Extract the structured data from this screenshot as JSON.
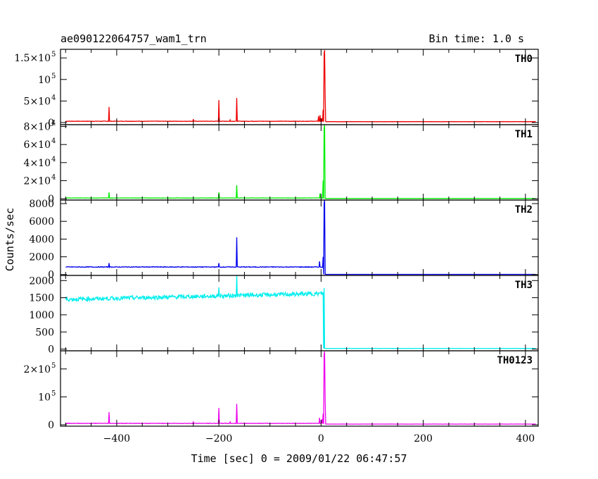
{
  "header": {
    "title": "ae090122064757_wam1_trn",
    "bin_time": "Bin time: 1.0 s"
  },
  "chart_data": {
    "type": "line",
    "xlabel": "Time [sec] 0 = 2009/01/22 06:47:57",
    "ylabel": "Counts/sec",
    "xlim": [
      -510,
      425
    ],
    "x_ticks": [
      -400,
      -200,
      0,
      200,
      400
    ],
    "grid": false,
    "panels": [
      {
        "name": "TH0",
        "color": "#ee0000",
        "ylim": [
          -5000,
          170000
        ],
        "y_ticks": [
          {
            "value": 0,
            "label": "0"
          },
          {
            "value": 50000,
            "label": "5×10",
            "exp": "4"
          },
          {
            "value": 100000,
            "label": "10",
            "exp": "5"
          },
          {
            "value": 150000,
            "label": "1.5×10",
            "exp": "5"
          }
        ],
        "baseline": 3000,
        "noise": 500,
        "after": 2000,
        "spikes": [
          [
            -415,
            36000
          ],
          [
            -250,
            8000
          ],
          [
            -200,
            52000
          ],
          [
            -178,
            6000
          ],
          [
            -165,
            57000
          ],
          [
            -5,
            15000
          ],
          [
            -2,
            17000
          ],
          [
            1,
            10000
          ],
          [
            4,
            30000
          ],
          [
            6,
            160000
          ],
          [
            7,
            168000
          ],
          [
            8,
            60000
          ]
        ]
      },
      {
        "name": "TH1",
        "color": "#00ee00",
        "ylim": [
          -1500,
          82000
        ],
        "y_ticks": [
          {
            "value": 0,
            "label": "0"
          },
          {
            "value": 20000,
            "label": "2×10",
            "exp": "4"
          },
          {
            "value": 40000,
            "label": "4×10",
            "exp": "4"
          },
          {
            "value": 60000,
            "label": "6×10",
            "exp": "4"
          },
          {
            "value": 80000,
            "label": "8×10",
            "exp": "4"
          }
        ],
        "baseline": 800,
        "noise": 200,
        "after": 300,
        "spikes": [
          [
            -415,
            7000
          ],
          [
            -200,
            7000
          ],
          [
            -165,
            15000
          ],
          [
            -2,
            6000
          ],
          [
            4,
            20000
          ],
          [
            6,
            78000
          ],
          [
            7,
            82000
          ]
        ]
      },
      {
        "name": "TH2",
        "color": "#0000ee",
        "ylim": [
          -100,
          8400
        ],
        "y_ticks": [
          {
            "value": 0,
            "label": "0"
          },
          {
            "value": 2000,
            "label": "2000"
          },
          {
            "value": 4000,
            "label": "4000"
          },
          {
            "value": 6000,
            "label": "6000"
          },
          {
            "value": 8000,
            "label": "8000"
          }
        ],
        "baseline": 850,
        "noise": 40,
        "after": 20,
        "spikes": [
          [
            -415,
            1300
          ],
          [
            -200,
            1300
          ],
          [
            -165,
            4200
          ],
          [
            -3,
            1500
          ],
          [
            4,
            2000
          ],
          [
            6,
            8000
          ],
          [
            7,
            8400
          ]
        ]
      },
      {
        "name": "TH3",
        "color": "#00eeee",
        "ylim": [
          -50,
          2150
        ],
        "y_ticks": [
          {
            "value": 0,
            "label": "0"
          },
          {
            "value": 500,
            "label": "500"
          },
          {
            "value": 1000,
            "label": "1000"
          },
          {
            "value": 1500,
            "label": "1500"
          },
          {
            "value": 2000,
            "label": "2000"
          }
        ],
        "baseline_start": 1450,
        "baseline_end": 1620,
        "noise": 60,
        "after": 20,
        "spikes": [
          [
            -165,
            2150
          ],
          [
            -200,
            1800
          ],
          [
            6,
            1780
          ]
        ]
      },
      {
        "name": "TH0123",
        "color": "#ee00ee",
        "ylim": [
          -5000,
          265000
        ],
        "y_ticks": [
          {
            "value": 0,
            "label": "0"
          },
          {
            "value": 100000,
            "label": "10",
            "exp": "5"
          },
          {
            "value": 200000,
            "label": "2×10",
            "exp": "5"
          }
        ],
        "baseline": 5000,
        "noise": 800,
        "after": 2500,
        "spikes": [
          [
            -415,
            45000
          ],
          [
            -250,
            10000
          ],
          [
            -200,
            60000
          ],
          [
            -178,
            10000
          ],
          [
            -165,
            75000
          ],
          [
            -3,
            25000
          ],
          [
            2,
            20000
          ],
          [
            4,
            40000
          ],
          [
            6,
            250000
          ],
          [
            7,
            262000
          ],
          [
            8,
            90000
          ]
        ]
      }
    ]
  }
}
